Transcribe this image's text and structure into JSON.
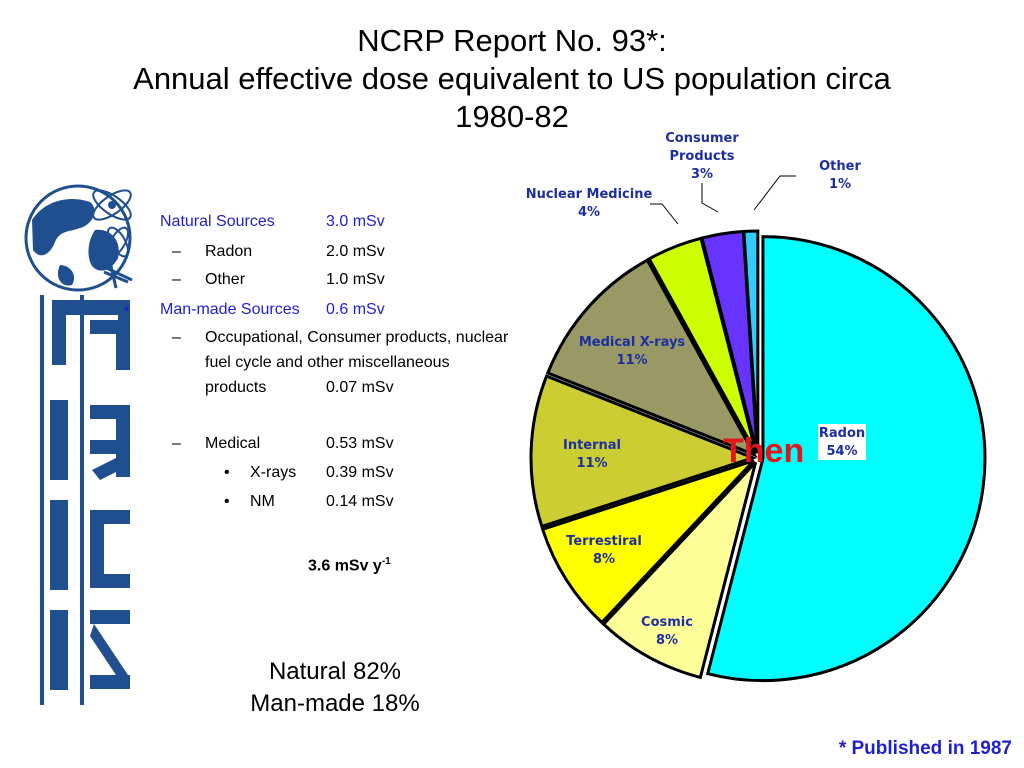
{
  "title": {
    "line1": "NCRP Report No. 93*:",
    "line2": "Annual effective dose equivalent to US population circa",
    "line3": "1980-82"
  },
  "logo": {
    "text": "NCRP"
  },
  "list": {
    "natural": {
      "label": "Natural Sources",
      "value": "3.0 mSv"
    },
    "radon": {
      "bullet": "–",
      "label": "Radon",
      "value": "2.0 mSv"
    },
    "other": {
      "bullet": "–",
      "label": "Other",
      "value": "1.0 mSv"
    },
    "manmade": {
      "bullet": "•",
      "label": "Man-made Sources",
      "value": "0.6 mSv"
    },
    "occupational": {
      "bullet": "–",
      "line1": "Occupational, Consumer products, nuclear",
      "line2": "fuel cycle and other miscellaneous",
      "line3": "products",
      "value": "0.07 mSv"
    },
    "medical": {
      "bullet": "–",
      "label": "Medical",
      "value": "0.53 mSv"
    },
    "xrays": {
      "bullet": "•",
      "label": "X-rays",
      "value": "0.39 mSv"
    },
    "nm": {
      "bullet": "•",
      "label": "NM",
      "value": "0.14 mSv"
    }
  },
  "total": {
    "text": "3.6 mSv y",
    "sup": "-1"
  },
  "summary": {
    "natural": "Natural 82%",
    "manmade": "Man-made 18%"
  },
  "published": "* Published in 1987",
  "chart_data": {
    "type": "pie",
    "overlay_text": "Then",
    "slices": [
      {
        "name": "Radon",
        "value": 54,
        "label": "54%",
        "color": "#00ffff"
      },
      {
        "name": "Cosmic",
        "value": 8,
        "label": "8%",
        "color": "#ffff99"
      },
      {
        "name": "Terrestiral",
        "value": 8,
        "label": "8%",
        "color": "#ffff00"
      },
      {
        "name": "Internal",
        "value": 11,
        "label": "11%",
        "color": "#cccc33"
      },
      {
        "name": "Medical X-rays",
        "value": 11,
        "label": "11%",
        "color": "#999966"
      },
      {
        "name": "Nuclear Medicine",
        "value": 4,
        "label": "4%",
        "color": "#ccff00"
      },
      {
        "name": "Consumer Products",
        "value": 3,
        "label": "3%",
        "color": "#6633ff"
      },
      {
        "name": "Other",
        "value": 1,
        "label": "1%",
        "color": "#33ccff"
      }
    ]
  }
}
